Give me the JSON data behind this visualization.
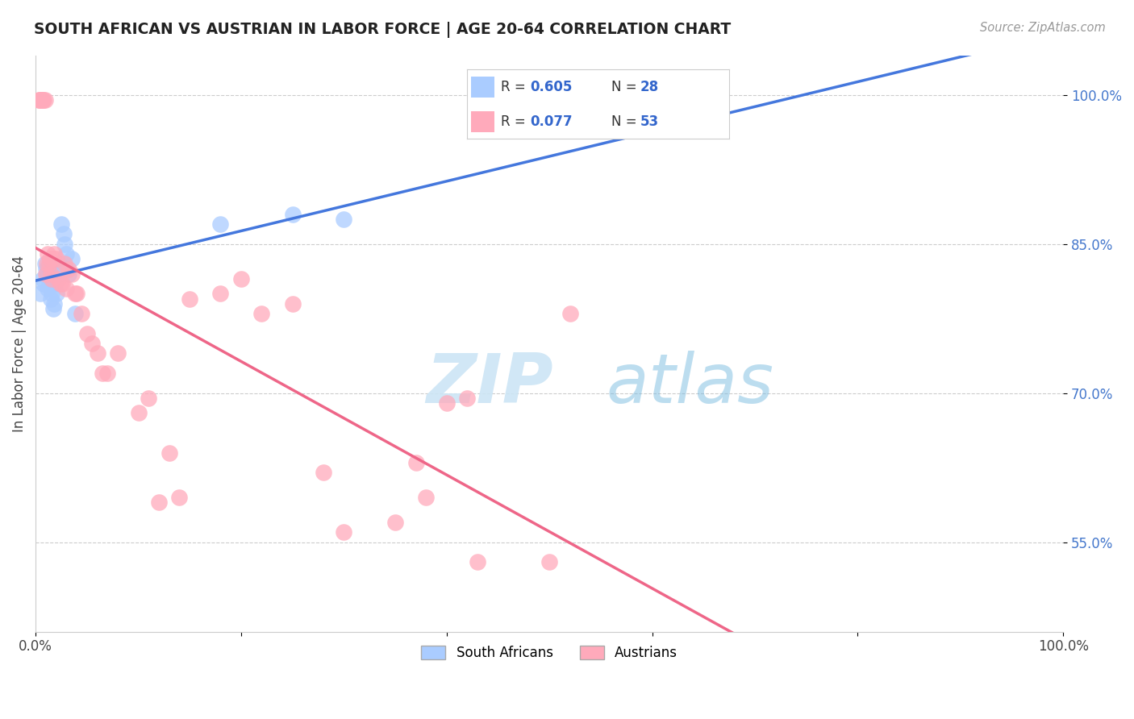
{
  "title": "SOUTH AFRICAN VS AUSTRIAN IN LABOR FORCE | AGE 20-64 CORRELATION CHART",
  "source": "Source: ZipAtlas.com",
  "ylabel": "In Labor Force | Age 20-64",
  "ytick_labels": [
    "55.0%",
    "70.0%",
    "85.0%",
    "100.0%"
  ],
  "ytick_values": [
    0.55,
    0.7,
    0.85,
    1.0
  ],
  "xlim": [
    0.0,
    1.0
  ],
  "ylim": [
    0.46,
    1.04
  ],
  "south_african": {
    "color": "#aaccff",
    "line_color": "#4477dd",
    "x": [
      0.005,
      0.007,
      0.008,
      0.009,
      0.01,
      0.011,
      0.012,
      0.013,
      0.014,
      0.015,
      0.015,
      0.016,
      0.017,
      0.018,
      0.019,
      0.02,
      0.022,
      0.023,
      0.025,
      0.027,
      0.028,
      0.03,
      0.032,
      0.035,
      0.038,
      0.18,
      0.25,
      0.3
    ],
    "y": [
      0.8,
      0.815,
      0.81,
      0.83,
      0.825,
      0.82,
      0.805,
      0.81,
      0.825,
      0.815,
      0.795,
      0.8,
      0.785,
      0.79,
      0.81,
      0.8,
      0.825,
      0.83,
      0.87,
      0.86,
      0.85,
      0.84,
      0.82,
      0.835,
      0.78,
      0.87,
      0.88,
      0.875
    ]
  },
  "austrian": {
    "color": "#ffaabb",
    "line_color": "#ee6688",
    "x": [
      0.003,
      0.004,
      0.005,
      0.006,
      0.007,
      0.008,
      0.009,
      0.01,
      0.011,
      0.012,
      0.013,
      0.014,
      0.015,
      0.016,
      0.017,
      0.018,
      0.02,
      0.022,
      0.024,
      0.026,
      0.028,
      0.03,
      0.032,
      0.035,
      0.038,
      0.04,
      0.045,
      0.05,
      0.055,
      0.06,
      0.065,
      0.07,
      0.08,
      0.1,
      0.11,
      0.12,
      0.13,
      0.14,
      0.15,
      0.18,
      0.2,
      0.22,
      0.25,
      0.28,
      0.3,
      0.35,
      0.37,
      0.38,
      0.4,
      0.42,
      0.43,
      0.5,
      0.52
    ],
    "y": [
      0.995,
      0.995,
      0.995,
      0.995,
      0.995,
      0.995,
      0.995,
      0.82,
      0.83,
      0.84,
      0.83,
      0.835,
      0.82,
      0.815,
      0.835,
      0.84,
      0.835,
      0.815,
      0.81,
      0.81,
      0.83,
      0.805,
      0.825,
      0.82,
      0.8,
      0.8,
      0.78,
      0.76,
      0.75,
      0.74,
      0.72,
      0.72,
      0.74,
      0.68,
      0.695,
      0.59,
      0.64,
      0.595,
      0.795,
      0.8,
      0.815,
      0.78,
      0.79,
      0.62,
      0.56,
      0.57,
      0.63,
      0.595,
      0.69,
      0.695,
      0.53,
      0.53,
      0.78
    ]
  },
  "watermark_zip": "ZIP",
  "watermark_atlas": "atlas",
  "background_color": "#ffffff",
  "grid_color": "#cccccc",
  "legend_sa_r": "0.605",
  "legend_sa_n": "28",
  "legend_au_r": "0.077",
  "legend_au_n": "53"
}
